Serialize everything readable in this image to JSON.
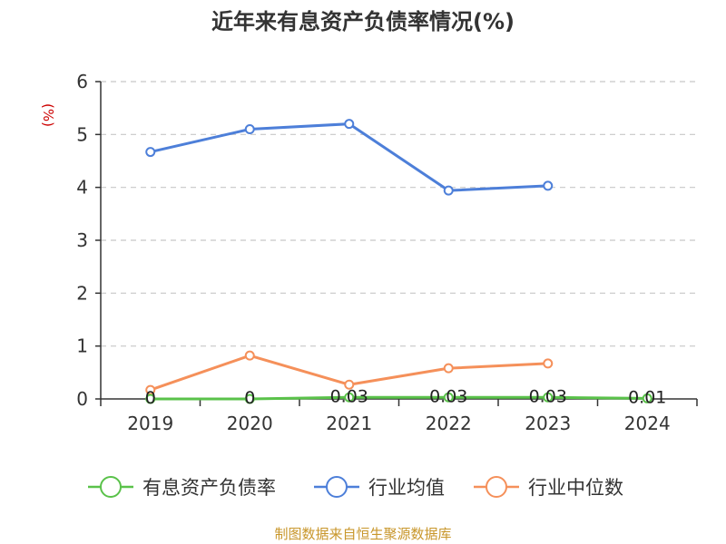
{
  "chart_data": {
    "type": "line",
    "title": "近年来有息资产负债率情况(%)",
    "ylabel": "(%)",
    "xlabel": "",
    "categories": [
      "2019",
      "2020",
      "2021",
      "2022",
      "2023",
      "2024"
    ],
    "ylim": [
      0,
      6
    ],
    "yticks": [
      "0",
      "1",
      "2",
      "3",
      "4",
      "5",
      "6"
    ],
    "grid": true,
    "legend_position": "bottom",
    "series": [
      {
        "name": "有息资产负债率",
        "color": "#5ac24a",
        "values": [
          0,
          0,
          0.03,
          0.03,
          0.03,
          0.01
        ],
        "labels": [
          "0",
          "0",
          "0.03",
          "0.03",
          "0.03",
          "0.01"
        ]
      },
      {
        "name": "行业均值",
        "color": "#4d7fd9",
        "values": [
          4.67,
          5.1,
          5.2,
          3.94,
          4.03,
          null
        ]
      },
      {
        "name": "行业中位数",
        "color": "#f5905a",
        "values": [
          0.17,
          0.82,
          0.27,
          0.58,
          0.67,
          null
        ]
      }
    ]
  },
  "source": "制图数据来自恒生聚源数据库"
}
